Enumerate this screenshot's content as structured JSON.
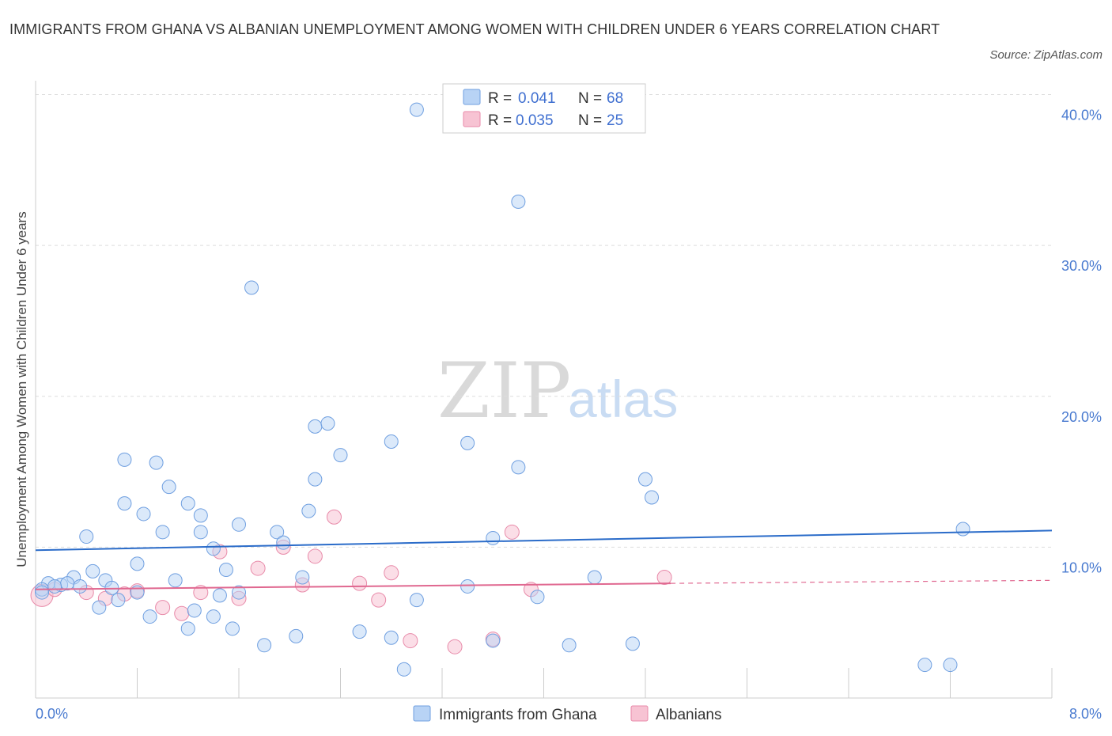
{
  "header": {
    "title": "IMMIGRANTS FROM GHANA VS ALBANIAN UNEMPLOYMENT AMONG WOMEN WITH CHILDREN UNDER 6 YEARS CORRELATION CHART",
    "source": "Source: ZipAtlas.com"
  },
  "watermark": {
    "zip": "ZIP",
    "atlas": "atlas"
  },
  "legend": {
    "r_label": "R =",
    "n_label": "N =",
    "ghana": {
      "r": "0.041",
      "n": "68"
    },
    "albanians": {
      "r": "0.035",
      "n": "25"
    }
  },
  "colors": {
    "ghana_fill": "#b8d3f5",
    "ghana_stroke": "#6f9fe0",
    "ghana_line": "#2b6cc9",
    "alb_fill": "#f7c3d3",
    "alb_stroke": "#e88aa9",
    "alb_line": "#e06890",
    "grid": "#dddddd",
    "axis_text": "#4a7bd0"
  },
  "chart_data": {
    "type": "scatter",
    "title": "IMMIGRANTS FROM GHANA VS ALBANIAN UNEMPLOYMENT AMONG WOMEN WITH CHILDREN UNDER 6 YEARS CORRELATION CHART",
    "xlabel": "",
    "ylabel": "Unemployment Among Women with Children Under 6 years",
    "xlim": [
      0,
      8
    ],
    "ylim": [
      0,
      40.5
    ],
    "x_tick_labels": [
      "0.0%",
      "8.0%"
    ],
    "y_ticks": [
      10,
      20,
      30,
      40
    ],
    "y_tick_labels": [
      "10.0%",
      "20.0%",
      "30.0%",
      "40.0%"
    ],
    "grid": true,
    "legend_position": "top-center",
    "series": [
      {
        "name": "Immigrants from Ghana",
        "color": "ghana",
        "trend": {
          "x": [
            0,
            8
          ],
          "y": [
            9.8,
            11.1
          ]
        },
        "points": [
          [
            3.0,
            39.0
          ],
          [
            3.8,
            32.9
          ],
          [
            1.7,
            27.2
          ],
          [
            2.2,
            18.0
          ],
          [
            2.3,
            18.2
          ],
          [
            2.8,
            17.0
          ],
          [
            3.4,
            16.9
          ],
          [
            2.4,
            16.1
          ],
          [
            0.7,
            15.8
          ],
          [
            0.95,
            15.6
          ],
          [
            3.8,
            15.3
          ],
          [
            2.2,
            14.5
          ],
          [
            4.8,
            14.5
          ],
          [
            1.05,
            14.0
          ],
          [
            4.85,
            13.3
          ],
          [
            0.7,
            12.9
          ],
          [
            1.2,
            12.9
          ],
          [
            0.85,
            12.2
          ],
          [
            2.15,
            12.4
          ],
          [
            1.3,
            12.1
          ],
          [
            1.6,
            11.5
          ],
          [
            1.0,
            11.0
          ],
          [
            1.3,
            11.0
          ],
          [
            1.9,
            11.0
          ],
          [
            7.3,
            11.2
          ],
          [
            0.4,
            10.7
          ],
          [
            3.6,
            10.6
          ],
          [
            1.95,
            10.3
          ],
          [
            1.4,
            9.9
          ],
          [
            0.8,
            8.9
          ],
          [
            0.45,
            8.4
          ],
          [
            1.5,
            8.5
          ],
          [
            0.3,
            8.0
          ],
          [
            0.55,
            7.8
          ],
          [
            1.1,
            7.8
          ],
          [
            2.1,
            8.0
          ],
          [
            4.4,
            8.0
          ],
          [
            0.1,
            7.6
          ],
          [
            0.2,
            7.5
          ],
          [
            0.25,
            7.6
          ],
          [
            0.05,
            7.2
          ],
          [
            0.15,
            7.4
          ],
          [
            0.35,
            7.4
          ],
          [
            0.6,
            7.3
          ],
          [
            0.8,
            7.0
          ],
          [
            1.45,
            6.8
          ],
          [
            1.6,
            7.0
          ],
          [
            3.4,
            7.4
          ],
          [
            0.65,
            6.5
          ],
          [
            0.5,
            6.0
          ],
          [
            1.25,
            5.8
          ],
          [
            0.9,
            5.4
          ],
          [
            1.4,
            5.4
          ],
          [
            3.0,
            6.5
          ],
          [
            3.95,
            6.7
          ],
          [
            1.2,
            4.6
          ],
          [
            1.55,
            4.6
          ],
          [
            2.05,
            4.1
          ],
          [
            2.55,
            4.4
          ],
          [
            2.8,
            4.0
          ],
          [
            1.8,
            3.5
          ],
          [
            3.6,
            3.8
          ],
          [
            4.2,
            3.5
          ],
          [
            4.7,
            3.6
          ],
          [
            2.9,
            1.9
          ],
          [
            7.0,
            2.2
          ],
          [
            7.2,
            2.2
          ],
          [
            0.05,
            7.0
          ]
        ]
      },
      {
        "name": "Albanians",
        "color": "alb",
        "trend": {
          "x": [
            0,
            5
          ],
          "y": [
            7.2,
            7.6
          ],
          "dashed_extension_to_x": 8,
          "dashed_end_y": 7.8
        },
        "points": [
          [
            0.05,
            6.8
          ],
          [
            0.15,
            7.2
          ],
          [
            0.4,
            7.0
          ],
          [
            0.55,
            6.6
          ],
          [
            0.7,
            6.9
          ],
          [
            0.8,
            7.1
          ],
          [
            1.0,
            6.0
          ],
          [
            1.15,
            5.6
          ],
          [
            1.3,
            7.0
          ],
          [
            1.45,
            9.7
          ],
          [
            1.6,
            6.6
          ],
          [
            1.75,
            8.6
          ],
          [
            1.95,
            10.0
          ],
          [
            2.1,
            7.5
          ],
          [
            2.2,
            9.4
          ],
          [
            2.35,
            12.0
          ],
          [
            2.55,
            7.6
          ],
          [
            2.7,
            6.5
          ],
          [
            2.8,
            8.3
          ],
          [
            2.95,
            3.8
          ],
          [
            3.3,
            3.4
          ],
          [
            3.6,
            3.9
          ],
          [
            3.75,
            11.0
          ],
          [
            3.9,
            7.2
          ],
          [
            4.95,
            8.0
          ]
        ]
      }
    ]
  },
  "bottom_legend": {
    "ghana_label": "Immigrants from Ghana",
    "albanians_label": "Albanians"
  }
}
